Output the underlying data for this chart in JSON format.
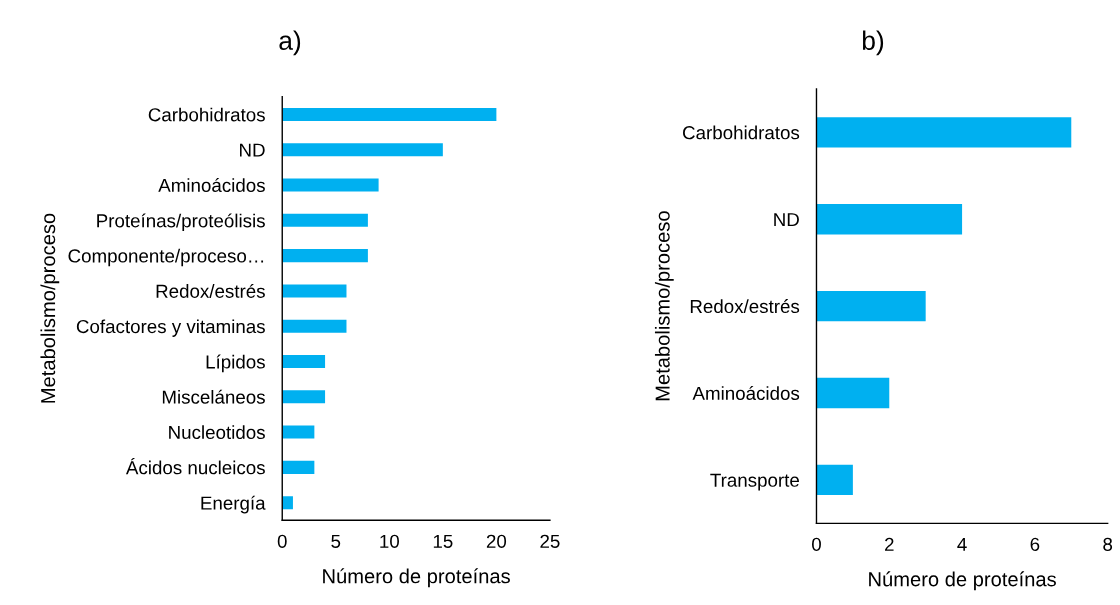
{
  "chart_data": [
    {
      "type": "bar",
      "orientation": "horizontal",
      "title": "a)",
      "xlabel": "Número de proteínas",
      "ylabel": "Metabolismo/proceso",
      "categories": [
        "Carbohidratos",
        "ND",
        "Aminoácidos",
        "Proteínas/proteólisis",
        "Componente/proceso…",
        "Redox/estrés",
        "Cofactores y vitaminas",
        "Lípidos",
        "Misceláneos",
        "Nucleotidos",
        "Ácidos nucleicos",
        "Energía"
      ],
      "values": [
        20,
        15,
        9,
        8,
        8,
        6,
        6,
        4,
        4,
        3,
        3,
        1
      ],
      "color": "#00b0f0",
      "xlim": [
        0,
        25
      ],
      "xticks": [
        0,
        5,
        10,
        15,
        20,
        25
      ]
    },
    {
      "type": "bar",
      "orientation": "horizontal",
      "title": "b)",
      "xlabel": "Número de proteínas",
      "ylabel": "Metabolismo/proceso",
      "categories": [
        "Carbohidratos",
        "ND",
        "Redox/estrés",
        "Aminoácidos",
        "Transporte"
      ],
      "values": [
        7,
        4,
        3,
        2,
        1
      ],
      "color": "#00b0f0",
      "xlim": [
        0,
        8
      ],
      "xticks": [
        0,
        2,
        4,
        6,
        8
      ]
    }
  ]
}
